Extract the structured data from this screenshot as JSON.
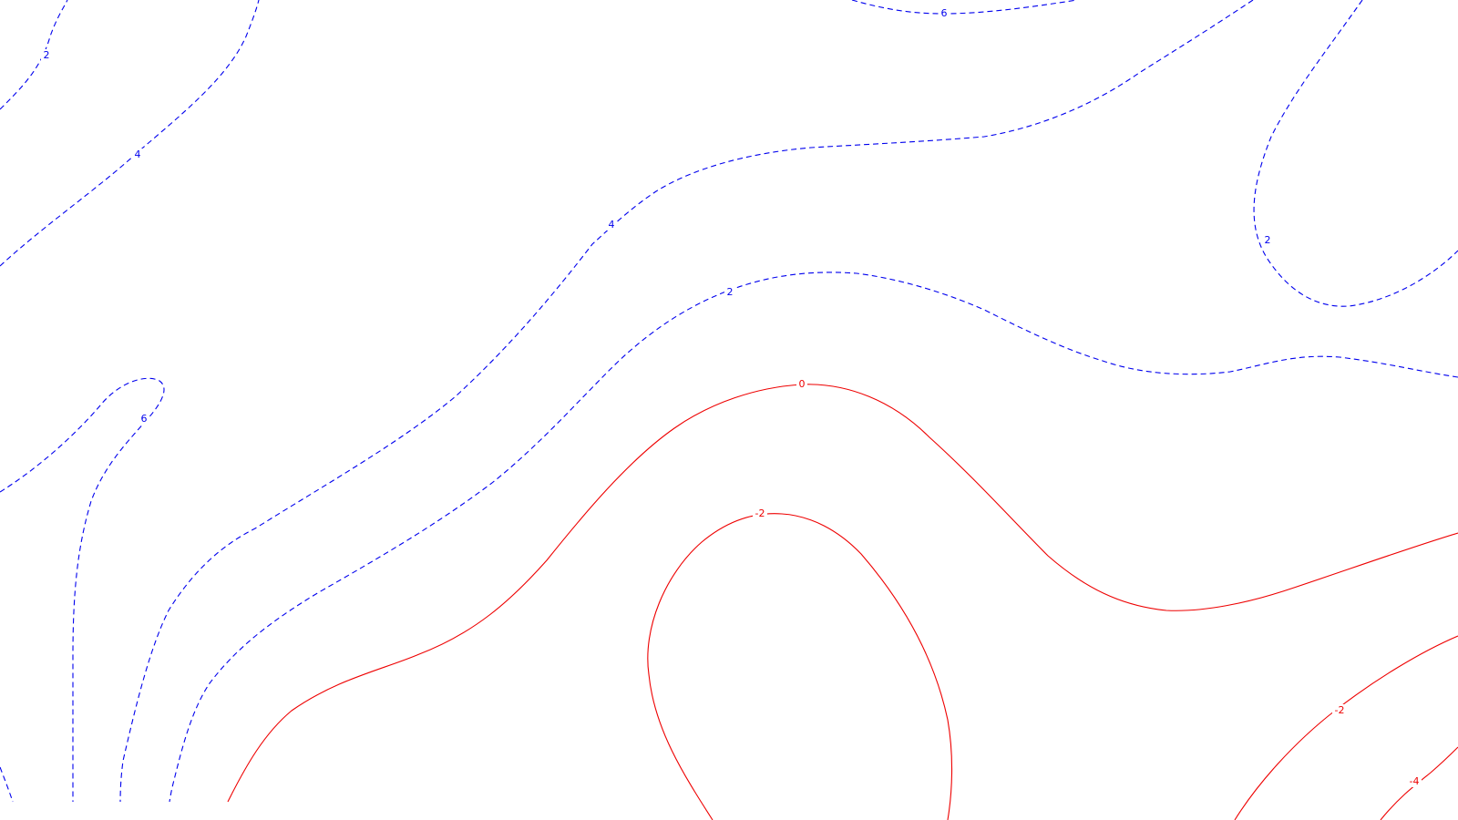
{
  "colors": {
    "positive": "#0000ee",
    "negative": "#ee0000",
    "background": "#ffffff"
  },
  "contours": [
    {
      "id": "pos-2-top-left",
      "level": 2,
      "label": "2"
    },
    {
      "id": "pos-4-top-left",
      "level": 4,
      "label": "4"
    },
    {
      "id": "pos-6-top",
      "level": 6,
      "label": "6"
    },
    {
      "id": "pos-4-center",
      "level": 4,
      "label": "4"
    },
    {
      "id": "pos-2-right-loop",
      "level": 2,
      "label": "2"
    },
    {
      "id": "pos-2-center",
      "level": 2,
      "label": "2"
    },
    {
      "id": "pos-6-left",
      "level": 6,
      "label": "6"
    },
    {
      "id": "neg-0",
      "level": 0,
      "label": "0"
    },
    {
      "id": "neg-m2-center",
      "level": -2,
      "label": "-2"
    },
    {
      "id": "neg-m2-right",
      "level": -2,
      "label": "-2"
    },
    {
      "id": "neg-m4-right",
      "level": -4,
      "label": "-4"
    }
  ]
}
